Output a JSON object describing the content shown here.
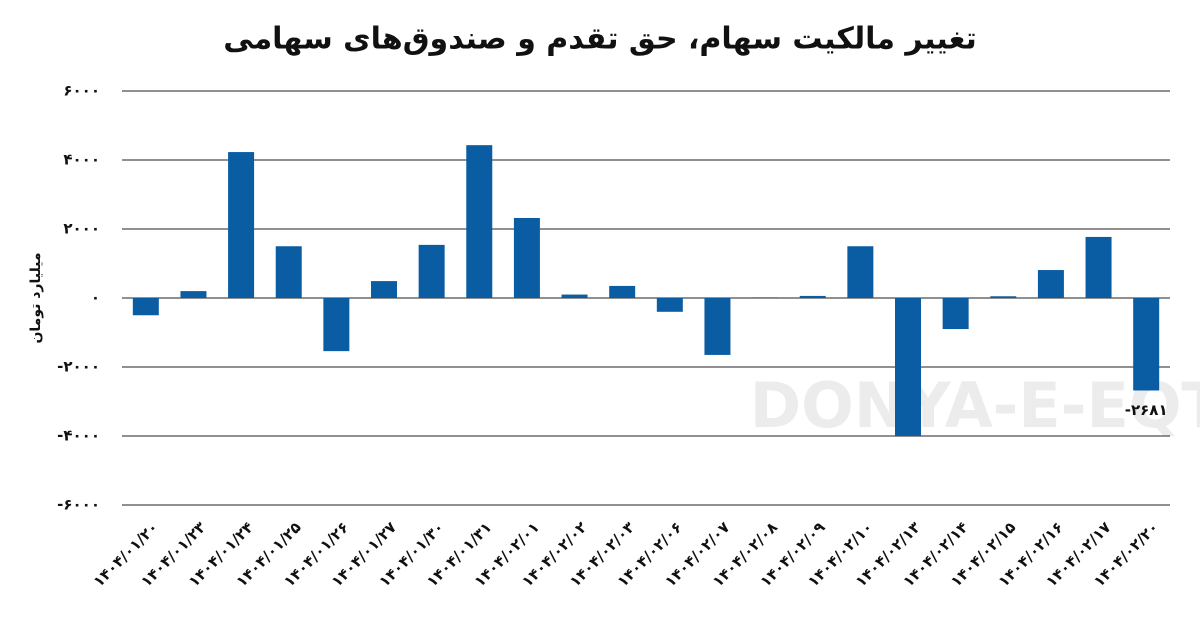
{
  "chart_data": {
    "type": "bar",
    "title": "تغییر مالکیت سهام، حق تقدم و صندوق‌های سهامی",
    "y_label": "میلیارد تومان",
    "watermark": "DONYA-E-EQTESAD",
    "categories": [
      "۱۴۰۴/۰۱/۲۰",
      "۱۴۰۴/۰۱/۲۳",
      "۱۴۰۴/۰۱/۲۴",
      "۱۴۰۴/۰۱/۲۵",
      "۱۴۰۴/۰۱/۲۶",
      "۱۴۰۴/۰۱/۲۷",
      "۱۴۰۴/۰۱/۳۰",
      "۱۴۰۴/۰۱/۳۱",
      "۱۴۰۴/۰۲/۰۱",
      "۱۴۰۴/۰۲/۰۲",
      "۱۴۰۴/۰۲/۰۳",
      "۱۴۰۴/۰۲/۰۶",
      "۱۴۰۴/۰۲/۰۷",
      "۱۴۰۴/۰۲/۰۸",
      "۱۴۰۴/۰۲/۰۹",
      "۱۴۰۴/۰۲/۱۰",
      "۱۴۰۴/۰۲/۱۳",
      "۱۴۰۴/۰۲/۱۴",
      "۱۴۰۴/۰۲/۱۵",
      "۱۴۰۴/۰۲/۱۶",
      "۱۴۰۴/۰۲/۱۷",
      "۱۴۰۴/۰۲/۲۰"
    ],
    "values": [
      -500,
      200,
      4230,
      1500,
      -1540,
      490,
      1540,
      4430,
      2320,
      100,
      350,
      -400,
      -1650,
      20,
      60,
      1500,
      -4000,
      -900,
      50,
      810,
      1770,
      -2681
    ],
    "value_labels": [
      null,
      null,
      null,
      null,
      null,
      null,
      null,
      null,
      null,
      null,
      null,
      null,
      null,
      null,
      null,
      null,
      null,
      null,
      null,
      null,
      null,
      "-۲۶۸۱"
    ],
    "color": "#0a5ca3",
    "ylim": [
      -6000,
      6000
    ],
    "yticks": [
      {
        "value": -6000,
        "label": "-۶۰۰۰"
      },
      {
        "value": -4000,
        "label": "-۴۰۰۰"
      },
      {
        "value": -2000,
        "label": "-۲۰۰۰"
      },
      {
        "value": 0,
        "label": "۰"
      },
      {
        "value": 2000,
        "label": "۲۰۰۰"
      },
      {
        "value": 4000,
        "label": "۴۰۰۰"
      },
      {
        "value": 6000,
        "label": "۶۰۰۰"
      }
    ],
    "grid": true
  }
}
